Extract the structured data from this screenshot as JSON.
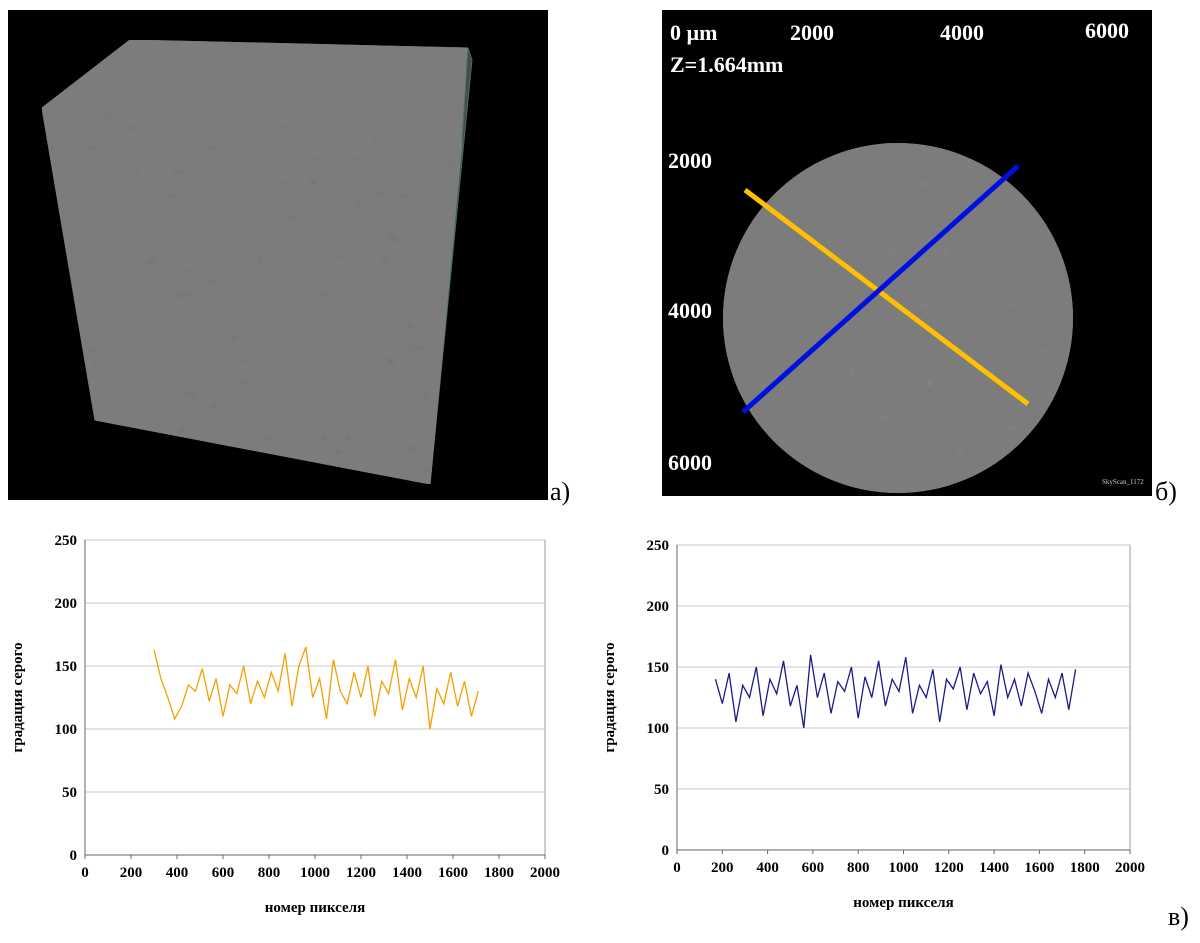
{
  "figure_labels": [
    "а)",
    "б)",
    "в)"
  ],
  "ct_slice": {
    "x_scale": [
      "0 µm",
      "2000",
      "4000",
      "6000"
    ],
    "y_scale": [
      "2000",
      "4000",
      "6000"
    ],
    "z_label": "Z=1.664mm",
    "scanner": "SkyScan_1172"
  },
  "chart_data": [
    {
      "type": "line",
      "ylabel": "градация серого",
      "xlabel": "номер пикселя",
      "color": "#f5a000",
      "xlim": [
        0,
        2000
      ],
      "xticks": [
        0,
        200,
        400,
        600,
        800,
        1000,
        1200,
        1400,
        1600,
        1800,
        2000
      ],
      "ylim": [
        0,
        250
      ],
      "yticks": [
        0,
        50,
        100,
        150,
        200,
        250
      ],
      "grid": true,
      "x": [
        300,
        330,
        360,
        390,
        420,
        450,
        480,
        510,
        540,
        570,
        600,
        630,
        660,
        690,
        720,
        750,
        780,
        810,
        840,
        870,
        900,
        930,
        960,
        990,
        1020,
        1050,
        1080,
        1110,
        1140,
        1170,
        1200,
        1230,
        1260,
        1290,
        1320,
        1350,
        1380,
        1410,
        1440,
        1470,
        1500,
        1530,
        1560,
        1590,
        1620,
        1650,
        1680,
        1710
      ],
      "values": [
        163,
        140,
        125,
        108,
        118,
        135,
        130,
        148,
        122,
        140,
        110,
        135,
        128,
        150,
        120,
        138,
        125,
        145,
        130,
        160,
        118,
        150,
        165,
        125,
        140,
        108,
        155,
        130,
        120,
        145,
        125,
        150,
        110,
        138,
        128,
        155,
        115,
        140,
        125,
        150,
        100,
        132,
        120,
        145,
        118,
        138,
        110,
        130
      ]
    },
    {
      "type": "line",
      "ylabel": "градация серого",
      "xlabel": "номер пикселя",
      "color": "#1a1a8c",
      "xlim": [
        0,
        2000
      ],
      "xticks": [
        0,
        200,
        400,
        600,
        800,
        1000,
        1200,
        1400,
        1600,
        1800,
        2000
      ],
      "ylim": [
        0,
        250
      ],
      "yticks": [
        0,
        50,
        100,
        150,
        200,
        250
      ],
      "grid": true,
      "x": [
        170,
        200,
        230,
        260,
        290,
        320,
        350,
        380,
        410,
        440,
        470,
        500,
        530,
        560,
        590,
        620,
        650,
        680,
        710,
        740,
        770,
        800,
        830,
        860,
        890,
        920,
        950,
        980,
        1010,
        1040,
        1070,
        1100,
        1130,
        1160,
        1190,
        1220,
        1250,
        1280,
        1310,
        1340,
        1370,
        1400,
        1430,
        1460,
        1490,
        1520,
        1550,
        1580,
        1610,
        1640,
        1670,
        1700,
        1730,
        1760
      ],
      "values": [
        140,
        120,
        145,
        105,
        135,
        125,
        150,
        110,
        140,
        128,
        155,
        118,
        135,
        100,
        160,
        125,
        145,
        112,
        138,
        130,
        150,
        108,
        142,
        125,
        155,
        118,
        140,
        130,
        158,
        112,
        135,
        125,
        148,
        105,
        140,
        132,
        150,
        115,
        145,
        128,
        138,
        110,
        152,
        125,
        140,
        118,
        145,
        130,
        112,
        140,
        125,
        145,
        115,
        148
      ]
    }
  ]
}
